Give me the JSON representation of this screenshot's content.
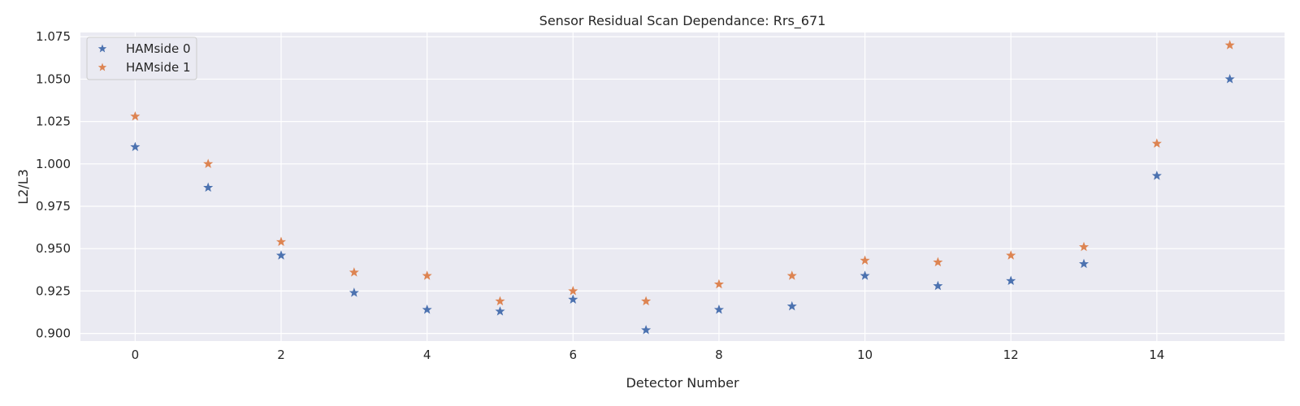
{
  "chart_data": {
    "type": "scatter",
    "title": "Sensor Residual Scan Dependance: Rrs_671",
    "xlabel": "Detector Number",
    "ylabel": "L2/L3",
    "xlim": [
      -0.75,
      15.75
    ],
    "ylim": [
      0.8955,
      1.0775
    ],
    "xticks": [
      0,
      2,
      4,
      6,
      8,
      10,
      12,
      14
    ],
    "xtick_labels": [
      "0",
      "2",
      "4",
      "6",
      "8",
      "10",
      "12",
      "14"
    ],
    "yticks": [
      0.9,
      0.925,
      0.95,
      0.975,
      1.0,
      1.025,
      1.05,
      1.075
    ],
    "ytick_labels": [
      "0.900",
      "0.925",
      "0.950",
      "0.975",
      "1.000",
      "1.025",
      "1.050",
      "1.075"
    ],
    "grid": true,
    "legend_position": "upper-left",
    "marker": "star",
    "x": [
      0,
      1,
      2,
      3,
      4,
      5,
      6,
      7,
      8,
      9,
      10,
      11,
      12,
      13,
      14,
      15
    ],
    "series": [
      {
        "name": "HAMside 0",
        "color": "#4c72b0",
        "values": [
          1.01,
          0.986,
          0.946,
          0.924,
          0.914,
          0.913,
          0.92,
          0.902,
          0.914,
          0.916,
          0.934,
          0.928,
          0.931,
          0.941,
          0.993,
          1.05
        ]
      },
      {
        "name": "HAMside 1",
        "color": "#dd8452",
        "values": [
          1.028,
          1.0,
          0.954,
          0.936,
          0.934,
          0.919,
          0.925,
          0.919,
          0.929,
          0.934,
          0.943,
          0.942,
          0.946,
          0.951,
          1.012,
          1.07
        ]
      }
    ]
  },
  "colors": {
    "plot_background": "#eaeaf2",
    "grid": "#ffffff"
  }
}
